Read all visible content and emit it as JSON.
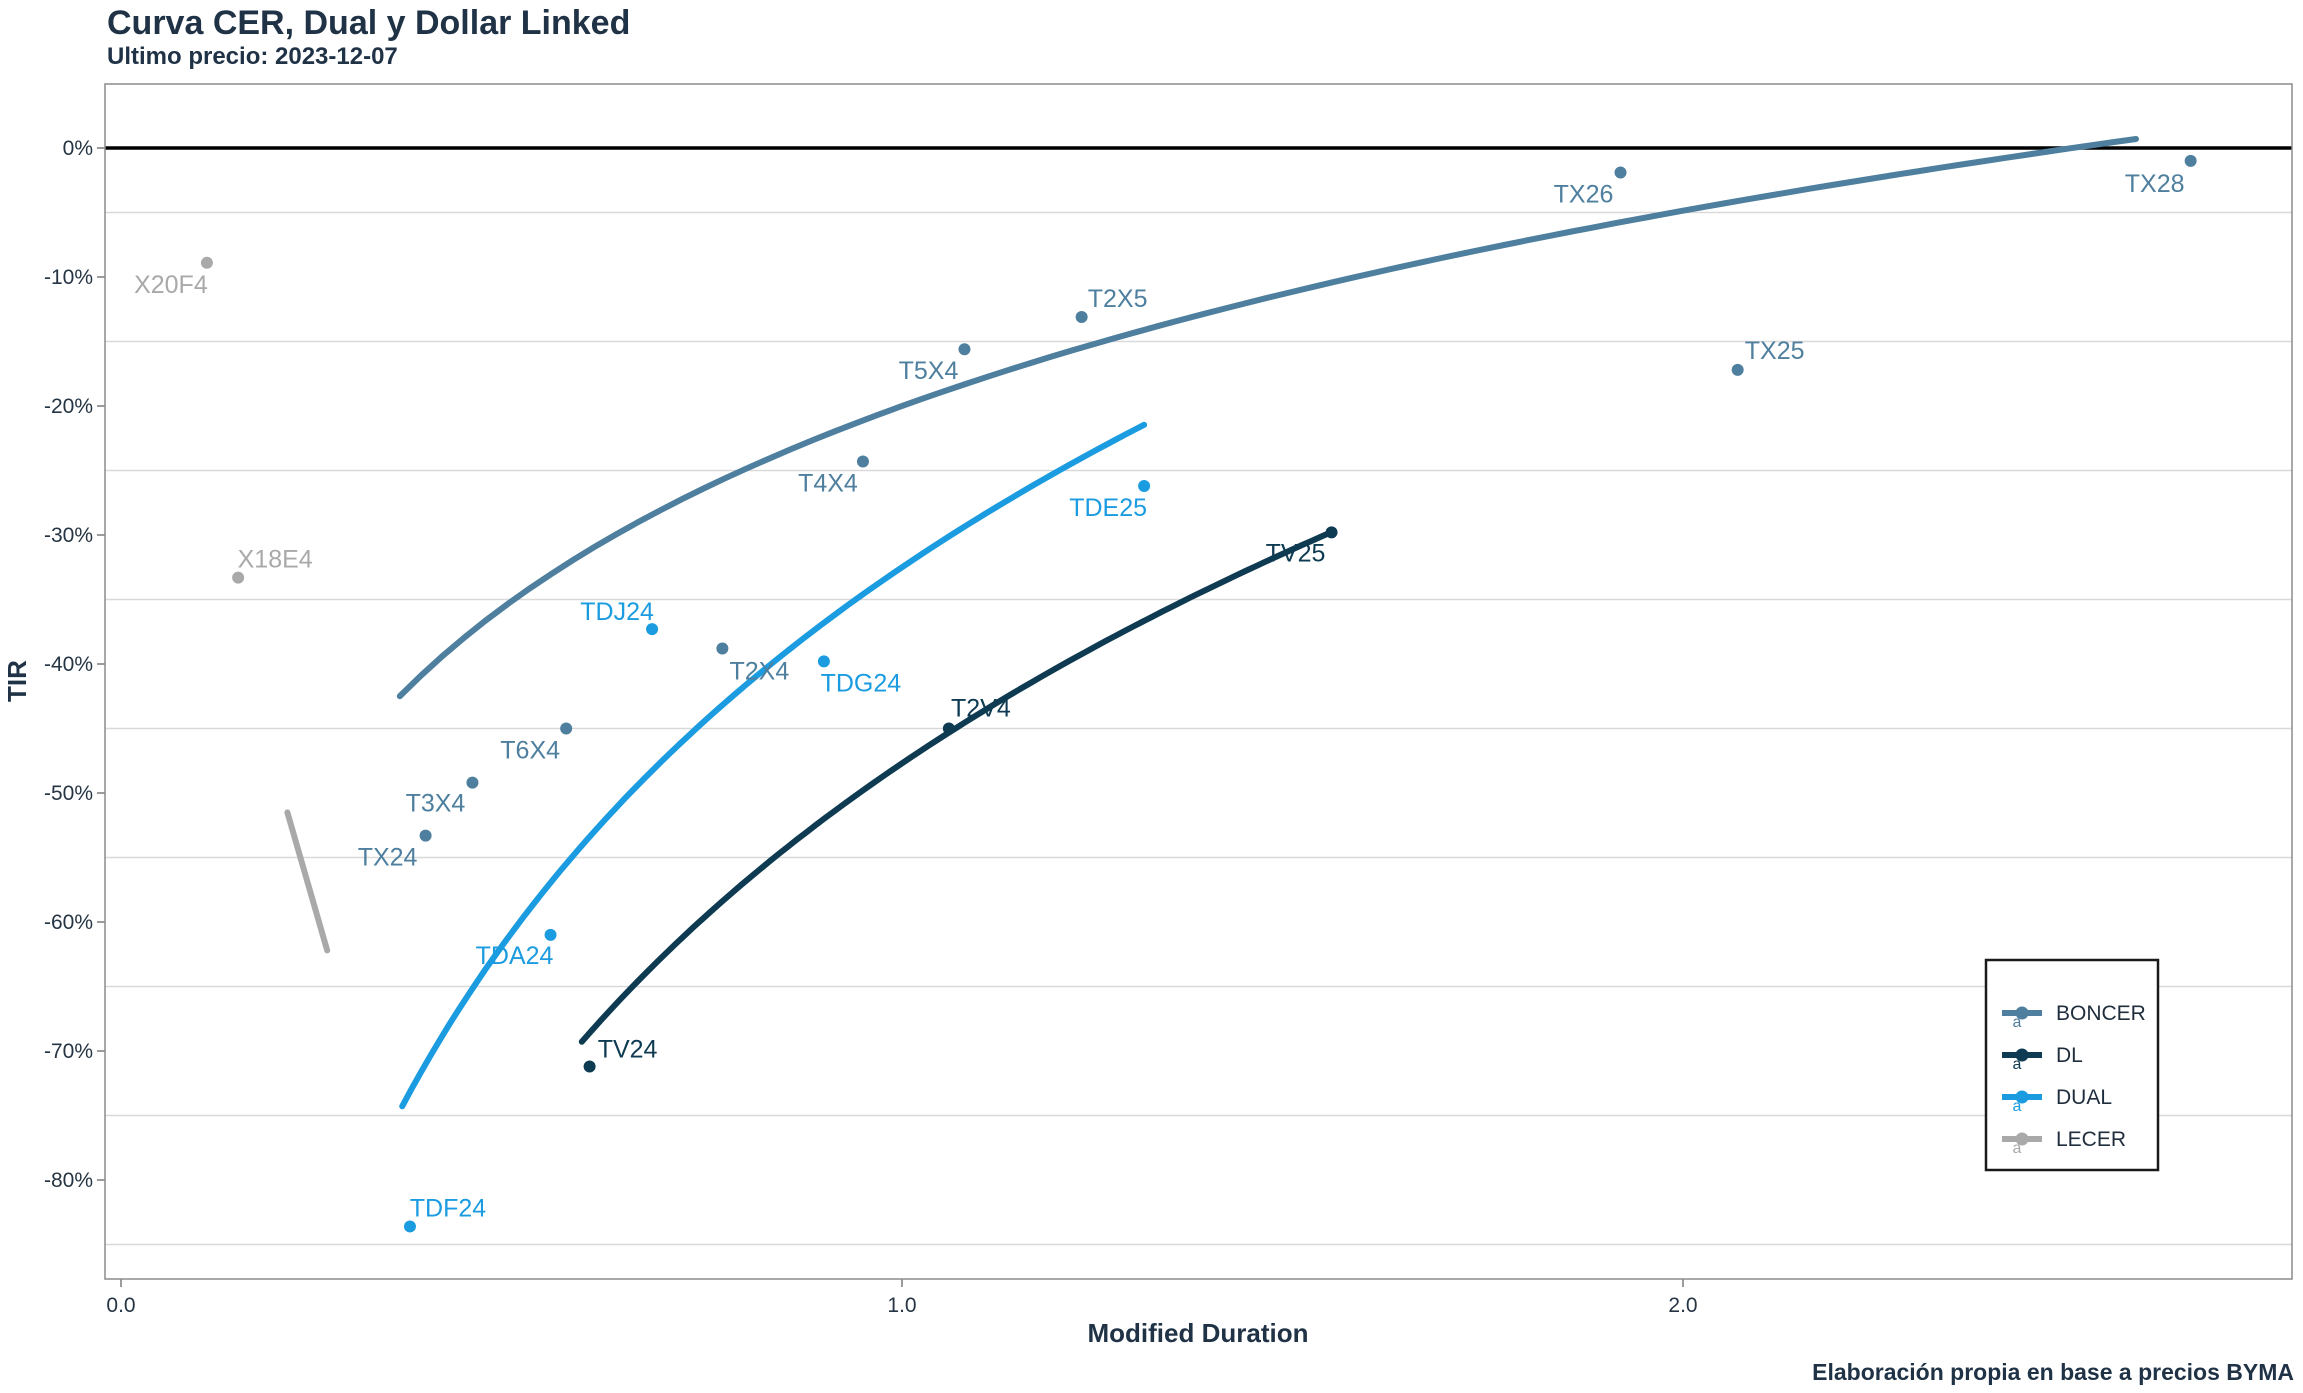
{
  "footer": {
    "credit": "Elaboración propia en base a precios BYMA"
  },
  "colors": {
    "BONCER": "#4e7f9e",
    "DL": "#0e3a52",
    "DUAL": "#1b9ce0",
    "LECER": "#a9a9a9",
    "zero_line": "#000000",
    "gridline": "#d9d9d9",
    "panel_border": "#8c8c8c",
    "tick": "#7a7a7a",
    "text_dark": "#1f3246"
  },
  "chart_data": {
    "type": "scatter",
    "title": "Curva CER, Dual y Dollar Linked",
    "subtitle": "Ultimo precio: 2023-12-07",
    "xlabel": "Modified Duration",
    "ylabel": "TIR",
    "xlim": [
      -0.02,
      2.78
    ],
    "ylim": [
      -87.7,
      5.0
    ],
    "grid": "horizontal-minor-only",
    "zero_line_y": 0,
    "x_ticks": [
      {
        "value": 0.0,
        "label": "0.0"
      },
      {
        "value": 1.0,
        "label": "1.0"
      },
      {
        "value": 2.0,
        "label": "2.0"
      }
    ],
    "y_ticks": [
      {
        "value": 0,
        "label": "0%"
      },
      {
        "value": -10,
        "label": "-10%"
      },
      {
        "value": -20,
        "label": "-20%"
      },
      {
        "value": -30,
        "label": "-30%"
      },
      {
        "value": -40,
        "label": "-40%"
      },
      {
        "value": -50,
        "label": "-50%"
      },
      {
        "value": -60,
        "label": "-60%"
      },
      {
        "value": -70,
        "label": "-70%"
      },
      {
        "value": -80,
        "label": "-80%"
      }
    ],
    "minor_gridlines_y": [
      -5,
      -15,
      -25,
      -35,
      -45,
      -55,
      -65,
      -75,
      -85
    ],
    "series": [
      {
        "name": "BONCER",
        "color": "#4e7f9e",
        "points": [
          {
            "label": "TX24",
            "x": 0.39,
            "y": -53.3,
            "dx": -38,
            "dy": 21
          },
          {
            "label": "T3X4",
            "x": 0.45,
            "y": -49.2,
            "dx": -37,
            "dy": 20
          },
          {
            "label": "T6X4",
            "x": 0.57,
            "y": -45.0,
            "dx": -36,
            "dy": 21
          },
          {
            "label": "T2X4",
            "x": 0.77,
            "y": -38.8,
            "dx": 37,
            "dy": 22
          },
          {
            "label": "T4X4",
            "x": 0.95,
            "y": -24.3,
            "dx": -35,
            "dy": 21
          },
          {
            "label": "T5X4",
            "x": 1.08,
            "y": -15.6,
            "dx": -36,
            "dy": 21
          },
          {
            "label": "T2X5",
            "x": 1.23,
            "y": -13.1,
            "dx": 36,
            "dy": -19
          },
          {
            "label": "TX26",
            "x": 1.92,
            "y": -1.9,
            "dx": -37,
            "dy": 21
          },
          {
            "label": "TX25",
            "x": 2.07,
            "y": -17.2,
            "dx": 37,
            "dy": -20
          },
          {
            "label": "TX28",
            "x": 2.65,
            "y": -1.0,
            "dx": -36,
            "dy": 22
          }
        ]
      },
      {
        "name": "DL",
        "color": "#0e3a52",
        "points": [
          {
            "label": "TV24",
            "x": 0.6,
            "y": -71.2,
            "dx": 38,
            "dy": -18
          },
          {
            "label": "T2V4",
            "x": 1.06,
            "y": -45.0,
            "dx": 32,
            "dy": -21
          },
          {
            "label": "TV25",
            "x": 1.55,
            "y": -29.8,
            "dx": -36,
            "dy": 20
          }
        ]
      },
      {
        "name": "DUAL",
        "color": "#1b9ce0",
        "points": [
          {
            "label": "TDF24",
            "x": 0.37,
            "y": -83.6,
            "dx": 38,
            "dy": -19
          },
          {
            "label": "TDA24",
            "x": 0.55,
            "y": -61.0,
            "dx": -36,
            "dy": 20
          },
          {
            "label": "TDJ24",
            "x": 0.68,
            "y": -37.3,
            "dx": -35,
            "dy": -18
          },
          {
            "label": "TDG24",
            "x": 0.9,
            "y": -39.8,
            "dx": 37,
            "dy": 21
          },
          {
            "label": "TDE25",
            "x": 1.31,
            "y": -26.2,
            "dx": -36,
            "dy": 21
          }
        ]
      },
      {
        "name": "LECER",
        "color": "#a9a9a9",
        "points": [
          {
            "label": "X20F4",
            "x": 0.11,
            "y": -8.9,
            "dx": -36,
            "dy": 21
          },
          {
            "label": "X18E4",
            "x": 0.15,
            "y": -33.3,
            "dx": 37,
            "dy": -19
          }
        ]
      }
    ],
    "curves": [
      {
        "series": "BONCER",
        "type": "log",
        "a": -20.0,
        "b": 21.84,
        "x_range": [
          0.357,
          2.58
        ]
      },
      {
        "series": "DL",
        "type": "log",
        "a": -47.7,
        "b": 40.9,
        "x_range": [
          0.59,
          1.549
        ]
      },
      {
        "series": "DUAL",
        "type": "log",
        "a": -32.5,
        "b": 40.9,
        "x_range": [
          0.36,
          1.31
        ]
      },
      {
        "series": "LECER",
        "type": "segment",
        "points": [
          [
            0.213,
            -51.5
          ],
          [
            0.264,
            -62.2
          ]
        ]
      }
    ],
    "legend": {
      "position": "inside-bottom-right",
      "key_glyph": "a",
      "items": [
        {
          "label": "BONCER",
          "color": "#4e7f9e"
        },
        {
          "label": "DL",
          "color": "#0e3a52"
        },
        {
          "label": "DUAL",
          "color": "#1b9ce0"
        },
        {
          "label": "LECER",
          "color": "#a9a9a9"
        }
      ]
    }
  }
}
